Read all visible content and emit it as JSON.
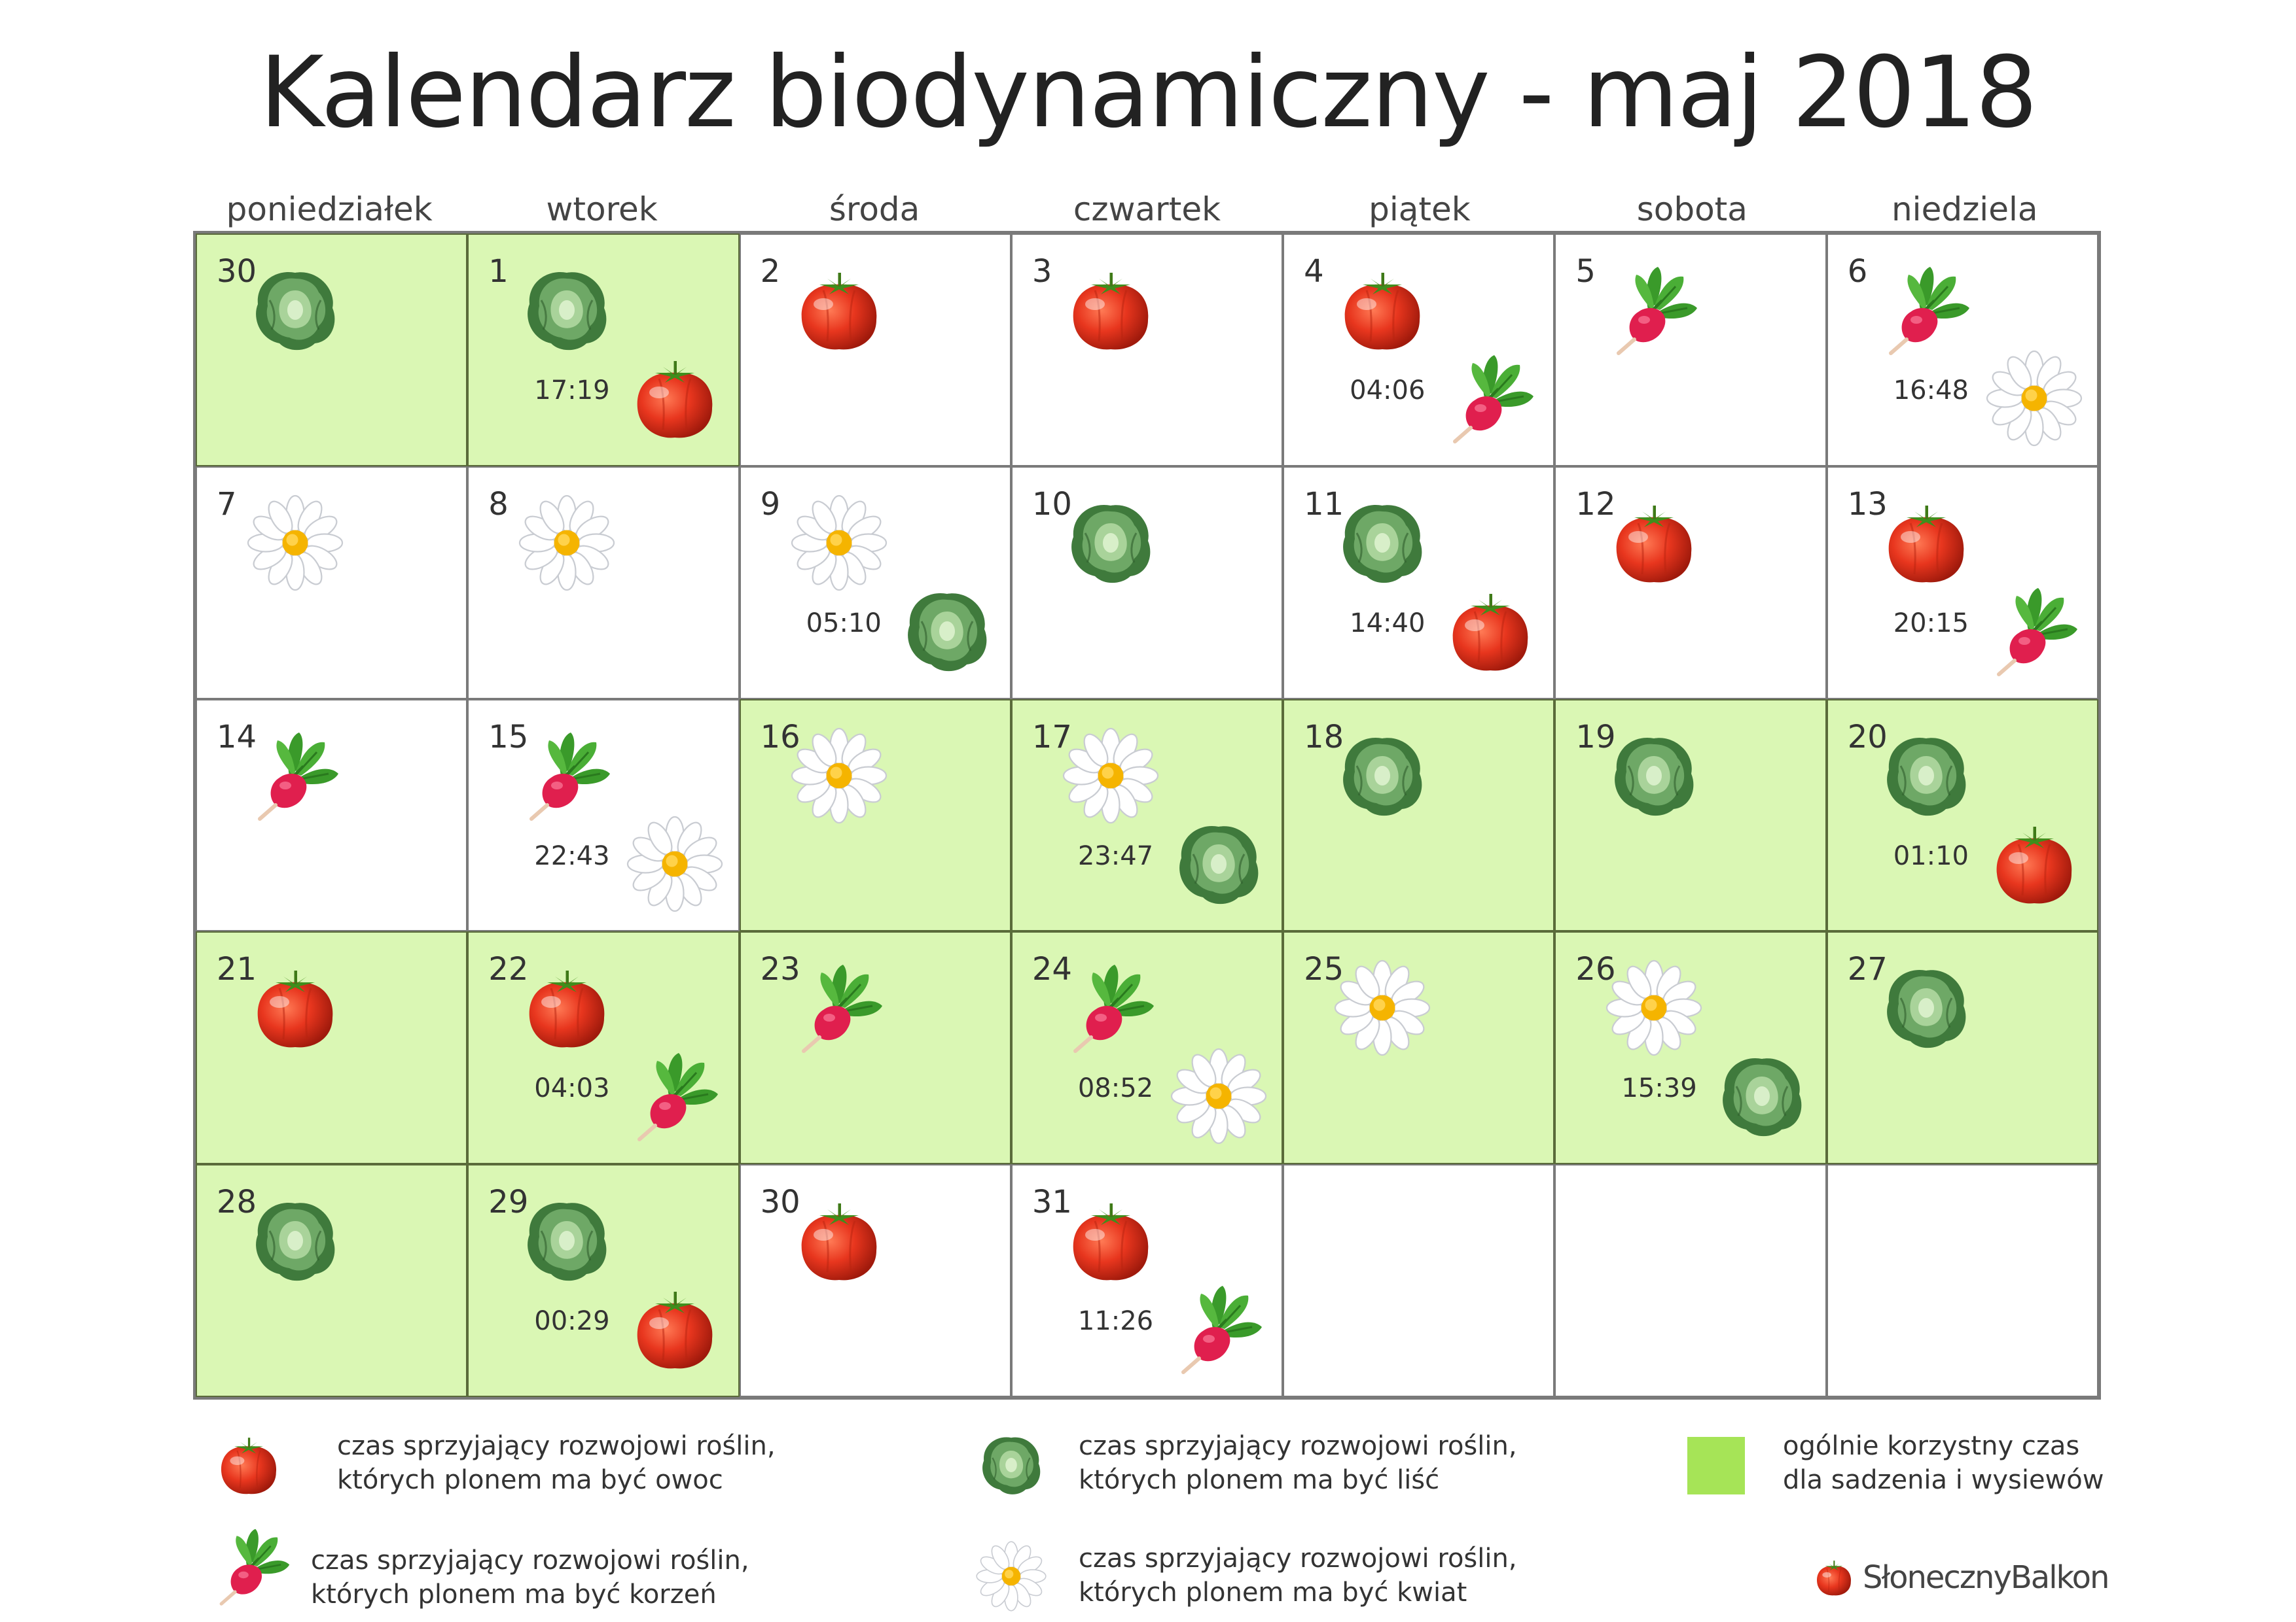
{
  "title": "Kalendarz biodynamiczny - maj 2018",
  "weekdays": [
    "poniedziałek",
    "wtorek",
    "środa",
    "czwartek",
    "piątek",
    "sobota",
    "niedziela"
  ],
  "cells": [
    {
      "day": "30",
      "good": true,
      "icons": [
        "cabbage"
      ],
      "time": ""
    },
    {
      "day": "1",
      "good": true,
      "icons": [
        "cabbage",
        "tomato"
      ],
      "time": "17:19"
    },
    {
      "day": "2",
      "good": false,
      "icons": [
        "tomato"
      ],
      "time": ""
    },
    {
      "day": "3",
      "good": false,
      "icons": [
        "tomato"
      ],
      "time": ""
    },
    {
      "day": "4",
      "good": false,
      "icons": [
        "tomato",
        "radish"
      ],
      "time": "04:06"
    },
    {
      "day": "5",
      "good": false,
      "icons": [
        "radish"
      ],
      "time": ""
    },
    {
      "day": "6",
      "good": false,
      "icons": [
        "radish",
        "daisy"
      ],
      "time": "16:48"
    },
    {
      "day": "7",
      "good": false,
      "icons": [
        "daisy"
      ],
      "time": ""
    },
    {
      "day": "8",
      "good": false,
      "icons": [
        "daisy"
      ],
      "time": ""
    },
    {
      "day": "9",
      "good": false,
      "icons": [
        "daisy",
        "cabbage"
      ],
      "time": "05:10"
    },
    {
      "day": "10",
      "good": false,
      "icons": [
        "cabbage"
      ],
      "time": ""
    },
    {
      "day": "11",
      "good": false,
      "icons": [
        "cabbage",
        "tomato"
      ],
      "time": "14:40"
    },
    {
      "day": "12",
      "good": false,
      "icons": [
        "tomato"
      ],
      "time": ""
    },
    {
      "day": "13",
      "good": false,
      "icons": [
        "tomato",
        "radish"
      ],
      "time": "20:15"
    },
    {
      "day": "14",
      "good": false,
      "icons": [
        "radish"
      ],
      "time": ""
    },
    {
      "day": "15",
      "good": false,
      "icons": [
        "radish",
        "daisy"
      ],
      "time": "22:43"
    },
    {
      "day": "16",
      "good": true,
      "icons": [
        "daisy"
      ],
      "time": ""
    },
    {
      "day": "17",
      "good": true,
      "icons": [
        "daisy",
        "cabbage"
      ],
      "time": "23:47"
    },
    {
      "day": "18",
      "good": true,
      "icons": [
        "cabbage"
      ],
      "time": ""
    },
    {
      "day": "19",
      "good": true,
      "icons": [
        "cabbage"
      ],
      "time": ""
    },
    {
      "day": "20",
      "good": true,
      "icons": [
        "cabbage",
        "tomato"
      ],
      "time": "01:10"
    },
    {
      "day": "21",
      "good": true,
      "icons": [
        "tomato"
      ],
      "time": ""
    },
    {
      "day": "22",
      "good": true,
      "icons": [
        "tomato",
        "radish"
      ],
      "time": "04:03"
    },
    {
      "day": "23",
      "good": true,
      "icons": [
        "radish"
      ],
      "time": ""
    },
    {
      "day": "24",
      "good": true,
      "icons": [
        "radish",
        "daisy"
      ],
      "time": "08:52"
    },
    {
      "day": "25",
      "good": true,
      "icons": [
        "daisy"
      ],
      "time": ""
    },
    {
      "day": "26",
      "good": true,
      "icons": [
        "daisy",
        "cabbage"
      ],
      "time": "15:39"
    },
    {
      "day": "27",
      "good": true,
      "icons": [
        "cabbage"
      ],
      "time": ""
    },
    {
      "day": "28",
      "good": true,
      "icons": [
        "cabbage"
      ],
      "time": ""
    },
    {
      "day": "29",
      "good": true,
      "icons": [
        "cabbage",
        "tomato"
      ],
      "time": "00:29"
    },
    {
      "day": "30",
      "good": false,
      "icons": [
        "tomato"
      ],
      "time": ""
    },
    {
      "day": "31",
      "good": false,
      "icons": [
        "tomato",
        "radish"
      ],
      "time": "11:26"
    },
    {
      "day": "",
      "good": false,
      "icons": [],
      "time": ""
    },
    {
      "day": "",
      "good": false,
      "icons": [],
      "time": ""
    },
    {
      "day": "",
      "good": false,
      "icons": [],
      "time": ""
    }
  ],
  "legend": {
    "fruit": {
      "icon": "tomato-icon",
      "line1": "czas sprzyjający rozwojowi roślin,",
      "line2": "których plonem ma być owoc"
    },
    "leaf": {
      "icon": "cabbage-icon",
      "line1": "czas sprzyjający rozwojowi roślin,",
      "line2": "których plonem ma być liść"
    },
    "general": {
      "color": "#a6e457",
      "line1": "ogólnie korzystny czas",
      "line2": "dla sadzenia i wysiewów"
    },
    "root": {
      "icon": "radish-icon",
      "line1": "czas sprzyjający rozwojowi roślin,",
      "line2": "których plonem ma być korzeń"
    },
    "flower": {
      "icon": "daisy-icon",
      "line1": "czas sprzyjający rozwojowi roślin,",
      "line2": "których plonem ma być kwiat"
    }
  },
  "brand": {
    "name": "SłonecznyBalkon",
    "icon": "tomato-icon"
  },
  "colors": {
    "good_day": "#daf7b4",
    "swatch": "#a6e457",
    "grid_line": "#7a7a7a"
  }
}
